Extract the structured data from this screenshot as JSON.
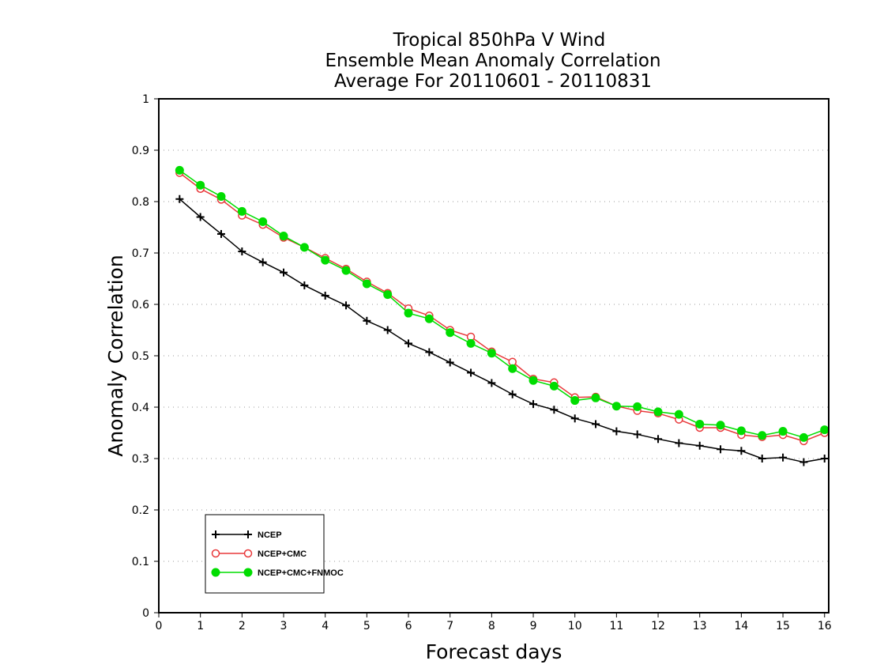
{
  "chart_data": {
    "type": "line",
    "title_lines": [
      "Tropical 850hPa V Wind",
      "Ensemble Mean Anomaly Correlation",
      "Average For 20110601 - 20110831"
    ],
    "xlabel": "Forecast days",
    "ylabel": "Anomaly Correlation",
    "xlim": [
      0,
      16.1
    ],
    "ylim": [
      0,
      1
    ],
    "x_ticks": [
      "0",
      "1",
      "2",
      "3",
      "4",
      "5",
      "6",
      "7",
      "8",
      "9",
      "10",
      "11",
      "12",
      "13",
      "14",
      "15",
      "16"
    ],
    "y_ticks": [
      "0",
      "0.1",
      "0.2",
      "0.3",
      "0.4",
      "0.5",
      "0.6",
      "0.7",
      "0.8",
      "0.9",
      "1"
    ],
    "grid": "horizontal dotted",
    "legend_position": "lower-left",
    "x": [
      0.5,
      1,
      1.5,
      2,
      2.5,
      3,
      3.5,
      4,
      4.5,
      5,
      5.5,
      6,
      6.5,
      7,
      7.5,
      8,
      8.5,
      9,
      9.5,
      10,
      10.5,
      11,
      11.5,
      12,
      12.5,
      13,
      13.5,
      14,
      14.5,
      15,
      15.5,
      16
    ],
    "series": [
      {
        "name": "NCEP",
        "color": "#000000",
        "marker": "plus",
        "values": [
          0.805,
          0.77,
          0.737,
          0.703,
          0.682,
          0.662,
          0.637,
          0.617,
          0.598,
          0.568,
          0.55,
          0.524,
          0.507,
          0.487,
          0.467,
          0.447,
          0.425,
          0.406,
          0.395,
          0.378,
          0.367,
          0.353,
          0.347,
          0.338,
          0.33,
          0.325,
          0.318,
          0.315,
          0.3,
          0.302,
          0.293,
          0.3
        ]
      },
      {
        "name": "NCEP+CMC",
        "color": "#e8383a",
        "marker": "open-circle",
        "values": [
          0.856,
          0.825,
          0.804,
          0.773,
          0.755,
          0.73,
          0.711,
          0.69,
          0.669,
          0.644,
          0.622,
          0.592,
          0.578,
          0.55,
          0.537,
          0.508,
          0.488,
          0.455,
          0.448,
          0.419,
          0.42,
          0.402,
          0.393,
          0.388,
          0.376,
          0.36,
          0.36,
          0.346,
          0.342,
          0.346,
          0.334,
          0.35
        ]
      },
      {
        "name": "NCEP+CMC+FNMOC",
        "color": "#00dd00",
        "marker": "filled-circle",
        "values": [
          0.861,
          0.832,
          0.81,
          0.781,
          0.761,
          0.733,
          0.711,
          0.686,
          0.666,
          0.64,
          0.619,
          0.583,
          0.572,
          0.545,
          0.524,
          0.505,
          0.475,
          0.452,
          0.441,
          0.413,
          0.418,
          0.402,
          0.401,
          0.391,
          0.386,
          0.367,
          0.365,
          0.354,
          0.345,
          0.353,
          0.341,
          0.356
        ]
      }
    ]
  }
}
